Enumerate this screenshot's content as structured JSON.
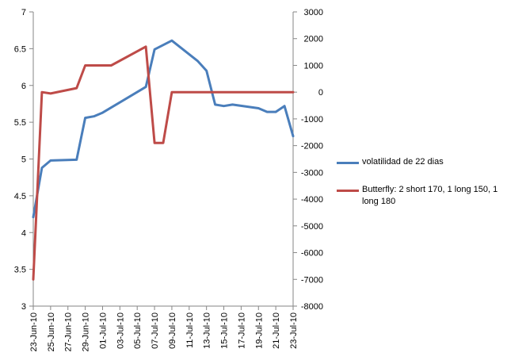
{
  "chart_data": {
    "type": "line",
    "title": "",
    "xlabel": "",
    "ylabel": "",
    "grid": false,
    "legend_position": "right",
    "x_tick_labels": [
      "23-Jun-10",
      "25-Jun-10",
      "27-Jun-10",
      "29-Jun-10",
      "01-Jul-10",
      "03-Jul-10",
      "05-Jul-10",
      "07-Jul-10",
      "09-Jul-10",
      "11-Jul-10",
      "13-Jul-10",
      "15-Jul-10",
      "17-Jul-10",
      "19-Jul-10",
      "21-Jul-10",
      "23-Jul-10"
    ],
    "x_range": [
      "2010-06-23",
      "2010-07-23"
    ],
    "y_left_range": [
      3,
      7
    ],
    "y_left_ticks": [
      "3",
      "3.5",
      "4",
      "4.5",
      "5",
      "5.5",
      "6",
      "6.5",
      "7"
    ],
    "y_right_range": [
      -8000,
      3000
    ],
    "y_right_ticks": [
      "-8000",
      "-7000",
      "-6000",
      "-5000",
      "-4000",
      "-3000",
      "-2000",
      "-1000",
      "0",
      "1000",
      "2000",
      "3000"
    ],
    "series": [
      {
        "name": "volatilidad de 22 dias",
        "axis": "left",
        "color": "#4a7ebb",
        "x": [
          "2010-06-23",
          "2010-06-24",
          "2010-06-25",
          "2010-06-28",
          "2010-06-29",
          "2010-06-30",
          "2010-07-01",
          "2010-07-02",
          "2010-07-06",
          "2010-07-07",
          "2010-07-09",
          "2010-07-12",
          "2010-07-13",
          "2010-07-14",
          "2010-07-15",
          "2010-07-16",
          "2010-07-19",
          "2010-07-20",
          "2010-07-21",
          "2010-07-22",
          "2010-07-23"
        ],
        "y": [
          4.21,
          4.88,
          4.98,
          4.99,
          5.56,
          5.58,
          5.63,
          5.7,
          5.98,
          6.49,
          6.61,
          6.33,
          6.2,
          5.74,
          5.72,
          5.74,
          5.69,
          5.64,
          5.64,
          5.72,
          5.31
        ]
      },
      {
        "name": "Butterfly: 2 short 170, 1 long 150, 1 long 180",
        "axis": "right",
        "color": "#be4b48",
        "x": [
          "2010-06-23",
          "2010-06-24",
          "2010-06-25",
          "2010-06-28",
          "2010-06-29",
          "2010-06-30",
          "2010-07-01",
          "2010-07-02",
          "2010-07-06",
          "2010-07-07",
          "2010-07-08",
          "2010-07-09",
          "2010-07-12",
          "2010-07-13",
          "2010-07-14",
          "2010-07-15",
          "2010-07-16",
          "2010-07-19",
          "2010-07-20",
          "2010-07-21",
          "2010-07-22",
          "2010-07-23"
        ],
        "y": [
          -7000,
          0,
          -50,
          150,
          1000,
          1000,
          1000,
          1000,
          1700,
          -1900,
          -1900,
          0,
          0,
          0,
          0,
          0,
          0,
          0,
          0,
          0,
          0,
          0
        ]
      }
    ]
  }
}
